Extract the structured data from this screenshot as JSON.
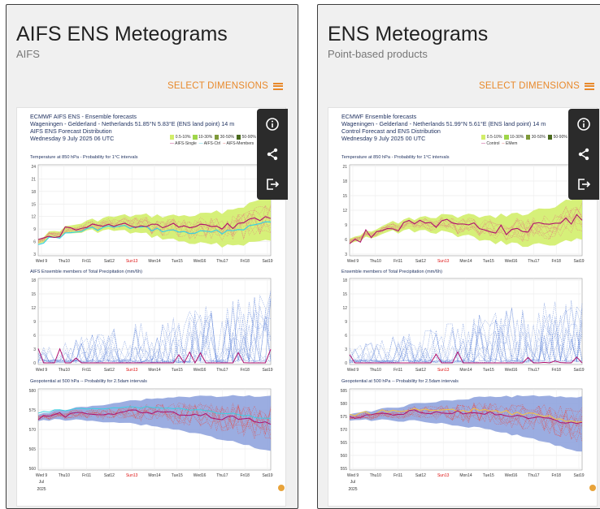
{
  "cards": [
    {
      "title": "AIFS ENS Meteograms",
      "subtitle": "AIFS",
      "select_label": "SELECT DIMENSIONS",
      "header_lines": [
        "ECMWF AIFS ENS - Ensemble forecasts",
        "Wageningen - Gelderland - Netherlands 51.85°N 5.83°E (ENS land point) 14 m",
        "AIFS ENS Forecast Distribution",
        "Wednesday  9 July 2025 06 UTC"
      ],
      "legend": [
        "0.5-10%",
        "10-30%",
        "30-50%",
        "50-90%",
        "AIFS-Single",
        "AIFS-Ctrl",
        "AIFS-Members"
      ],
      "panel_titles": [
        "Temperature at 850 hPa - Probability for 1°C intervals",
        "AIFS Ensemble members of Total Precipitation (mm/6h)",
        "Geopotential at 500 hPa -- Probability for 2.5dam intervals"
      ]
    },
    {
      "title": "ENS Meteograms",
      "subtitle": "Point-based products",
      "select_label": "SELECT DIMENSIONS",
      "header_lines": [
        "ECMWF Ensemble forecasts",
        "Wageningen - Gelderland - Netherlands 51.99°N 5.61°E (ENS land point) 14 m",
        "Control Forecast and ENS Distribution",
        "Wednesday  9 July 2025 00 UTC"
      ],
      "legend": [
        "0.5-10%",
        "10-30%",
        "30-50%",
        "50-90%",
        "Control",
        "EMem"
      ],
      "panel_titles": [
        "Temperature at 850 hPa - Probability for 1°C intervals",
        "Ensemble members of Total Precipitation (mm/6h)",
        "Geopotential at 500 hPa -- Probability for 2.5dam intervals"
      ]
    }
  ],
  "days": [
    "Wed 9",
    "Thu10",
    "Fri11",
    "Sat12",
    "Sun13",
    "Mon14",
    "Tue15",
    "Wed16",
    "Thu17",
    "Fri18",
    "Sat19"
  ],
  "month_label": "Jul",
  "year_label": "2025",
  "axes": {
    "temp_left": [
      "24",
      "21",
      "18",
      "15",
      "12",
      "9",
      "6",
      "3"
    ],
    "temp_right": [
      "21",
      "18",
      "15",
      "12",
      "9",
      "6",
      "3"
    ],
    "precip": [
      "18",
      "15",
      "12",
      "9",
      "6",
      "3",
      "0"
    ],
    "geo_left": [
      "580",
      "575",
      "570",
      "565",
      "560"
    ],
    "geo_right": [
      "585",
      "580",
      "575",
      "570",
      "565",
      "560",
      "555"
    ]
  },
  "icons": [
    "info-icon",
    "share-icon",
    "export-icon",
    "hamburger-icon"
  ],
  "colors": {
    "accent": "#e8892b",
    "title_blue": "#1d2f5e",
    "temp_shade": "#d2ee6a",
    "geo_shade": "#8a9fdc",
    "main_line": "#b0106e",
    "sunday": "#d11"
  }
}
